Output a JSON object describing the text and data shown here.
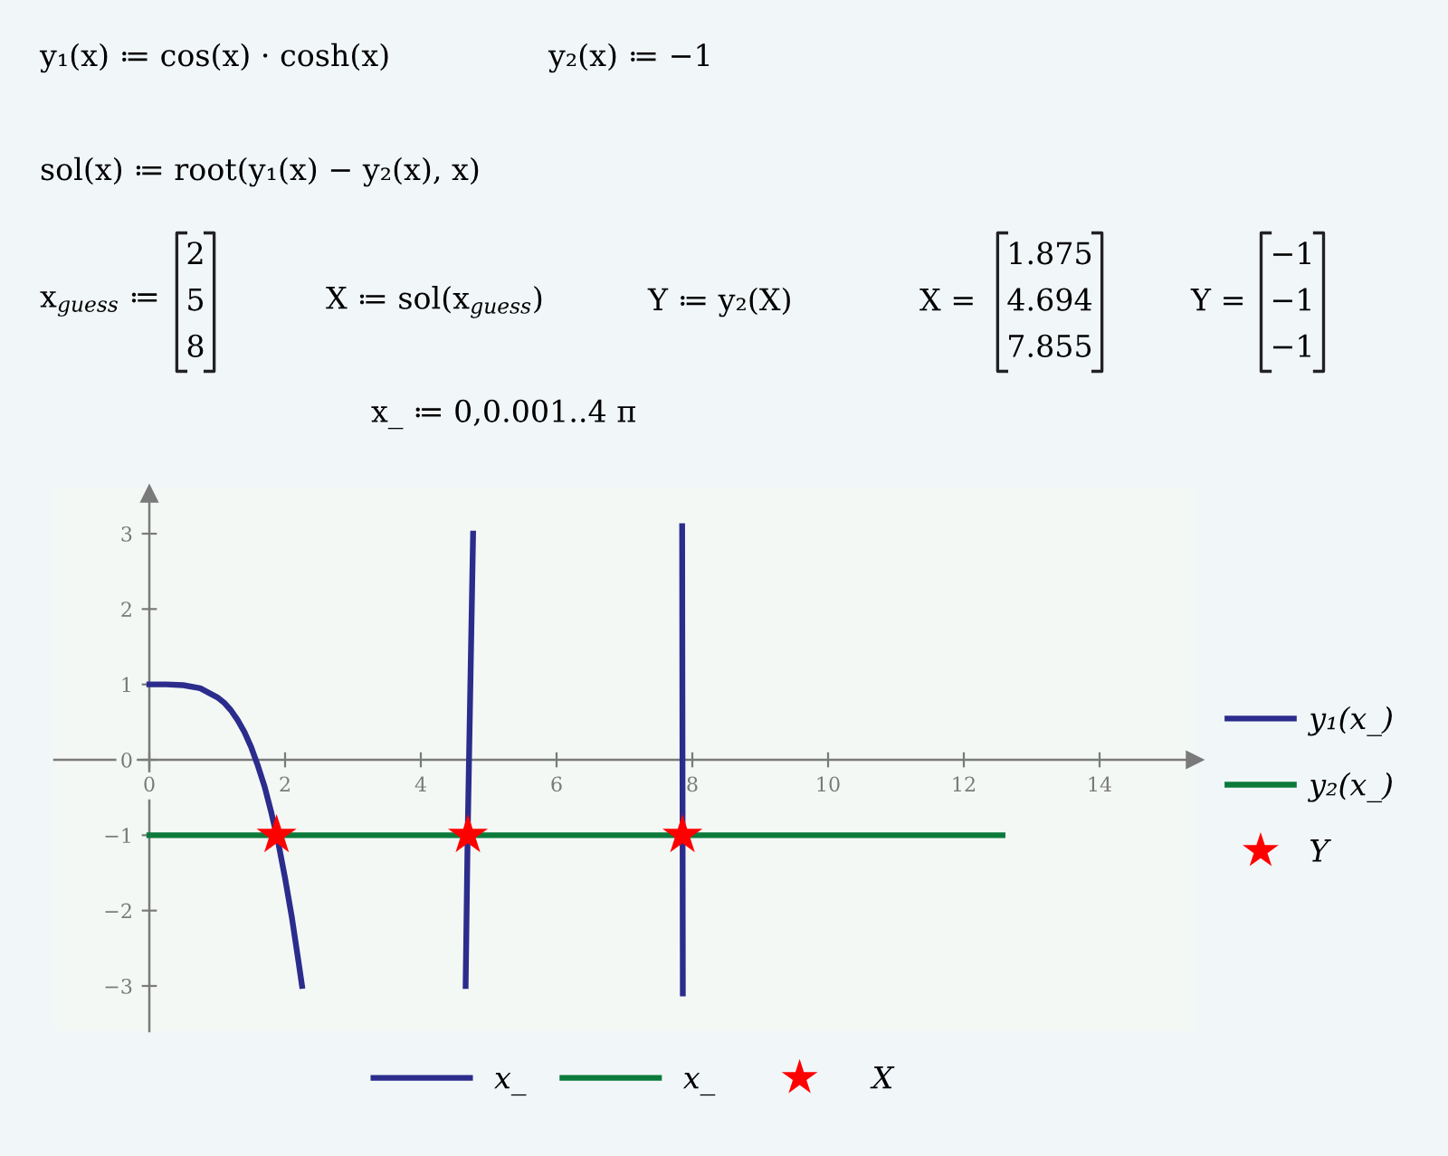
{
  "chart_data": {
    "type": "line",
    "annotations": [
      "y₁(x) ≔ cos(x) · cosh(x)",
      "y₂(x) ≔ −1",
      "sol(x) ≔ root(y₁(x) − y₂(x), x)",
      "x$_{guess}$ ≔",
      "2\n5\n8",
      "X ≔ sol(x$_{guess}$)",
      "Y ≔ y₂(X)",
      "X =",
      "1.875\n4.694\n7.855",
      "Y =",
      "−1\n−1\n−1",
      "x_ ≔ 0,0.001..4 π",
      "x_",
      "x_",
      "X"
    ],
    "xlim": [
      -1.4,
      15.4
    ],
    "ylim": [
      -3.6,
      3.6
    ],
    "xticks": [
      0,
      2,
      4,
      6,
      8,
      10,
      12,
      14
    ],
    "yticks": [
      {
        "value": -3,
        "label": "−3"
      },
      {
        "value": -2,
        "label": "−2"
      },
      {
        "value": -1,
        "label": "−1"
      },
      0,
      1,
      2,
      3
    ],
    "legend": "right",
    "series": [
      {
        "name": "y₁(x_)",
        "color": "#2b2c8c",
        "x": [
          0,
          0.25,
          0.5,
          0.75,
          1,
          1.1,
          1.2,
          1.3,
          1.4,
          1.5,
          1.6,
          1.7,
          1.8,
          1.9,
          2,
          2.1,
          2.2,
          2.25,
          3.5,
          4.66,
          4.69,
          4.77,
          6.3,
          7.85,
          7.86
        ],
        "values": [
          1,
          1,
          0.99,
          0.95,
          0.83,
          0.76,
          0.66,
          0.53,
          0.37,
          0.17,
          -0.08,
          -0.36,
          -0.71,
          -1.1,
          -1.57,
          -2.09,
          -2.69,
          -3,
          null,
          -3,
          -1,
          3,
          null,
          3.1,
          -3.1
        ]
      },
      {
        "name": "y₂(x_)",
        "color": "#0b7a3b",
        "x": [
          0,
          12.57
        ],
        "values": [
          -1,
          -1
        ]
      },
      {
        "name": "Y",
        "type": "scatter",
        "marker": "star",
        "color": "#ff0000",
        "x": [
          1.875,
          4.694,
          7.855
        ],
        "values": [
          -1,
          -1,
          -1
        ]
      }
    ]
  }
}
